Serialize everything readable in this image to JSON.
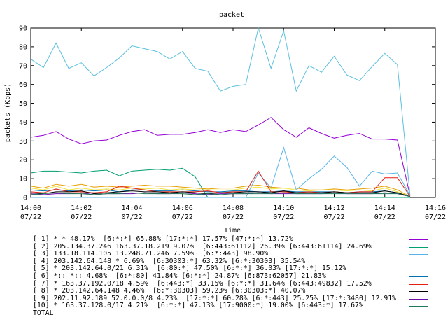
{
  "chart_data": {
    "type": "line",
    "title": "packet",
    "xlabel": "Time",
    "ylabel": "packets (Kpps)",
    "ylim": [
      0,
      90
    ],
    "yticks": [
      0,
      10,
      20,
      30,
      40,
      50,
      60,
      70,
      80,
      90
    ],
    "xlim": [
      0,
      16
    ],
    "xticks": [
      {
        "value": 0,
        "time": "14:00",
        "date": "07/22"
      },
      {
        "value": 2,
        "time": "14:02",
        "date": "07/22"
      },
      {
        "value": 4,
        "time": "14:04",
        "date": "07/22"
      },
      {
        "value": 6,
        "time": "14:06",
        "date": "07/22"
      },
      {
        "value": 8,
        "time": "14:08",
        "date": "07/22"
      },
      {
        "value": 10,
        "time": "14:10",
        "date": "07/22"
      },
      {
        "value": 12,
        "time": "14:12",
        "date": "07/22"
      },
      {
        "value": 14,
        "time": "14:14",
        "date": "07/22"
      },
      {
        "value": 16,
        "time": "14:16",
        "date": "07/22"
      }
    ],
    "x": [
      0,
      0.5,
      1,
      1.5,
      2,
      2.5,
      3,
      3.5,
      4,
      4.5,
      5,
      5.5,
      6,
      6.5,
      7,
      7.5,
      8,
      8.5,
      9,
      9.5,
      10,
      10.5,
      11,
      11.5,
      12,
      12.5,
      13,
      13.5,
      14,
      14.5,
      15
    ],
    "series": [
      {
        "name": "[ 1] * * 48.17%  [6:*:*] 65.88% [17:*:*] 17.57% [47:*:*] 13.72%",
        "color": "#9400d3",
        "values": [
          32,
          33,
          35,
          31,
          28.5,
          30,
          30.5,
          33,
          35,
          36,
          33,
          33.5,
          33.5,
          34.5,
          36,
          34.5,
          36,
          35,
          38.5,
          42.5,
          36,
          32,
          37,
          34,
          31.5,
          33,
          34,
          31,
          31,
          30.5,
          1
        ]
      },
      {
        "name": "[ 2] 205.134.37.246 163.37.18.219 9.07%  [6:443:61112] 26.39% [6:443:61114] 24.69%",
        "color": "#009e73",
        "values": [
          13,
          14,
          14,
          13.5,
          13,
          14,
          14.5,
          11.5,
          14,
          14.5,
          15,
          14.5,
          15.5,
          11,
          0,
          0,
          0,
          0,
          0,
          0,
          0,
          0,
          0,
          0,
          0,
          0,
          0,
          0,
          0,
          0,
          0
        ]
      },
      {
        "name": "[ 3] 133.18.114.105 13.248.71.246 7.59%  [6:*:443] 98.90%",
        "color": "#56b4e9",
        "values": [
          0,
          0,
          0,
          0,
          0,
          0,
          0,
          0,
          0,
          0,
          0,
          0,
          0,
          0,
          0,
          0,
          0,
          0,
          13,
          5,
          26.5,
          4,
          10,
          15,
          22,
          16,
          6,
          14,
          12.5,
          13,
          1
        ]
      },
      {
        "name": "[ 4] 203.142.64.148 * 6.69%  [6:30303:*] 63.32% [6:*:30303] 35.54%",
        "color": "#e69f00",
        "values": [
          6,
          5,
          7,
          6,
          7,
          5.5,
          6,
          5.5,
          6,
          6.5,
          6,
          6,
          5.5,
          5,
          4.5,
          5,
          5,
          6,
          6.5,
          5.5,
          5,
          5,
          4,
          4,
          4.5,
          4,
          4.5,
          5,
          6,
          4,
          0.5
        ]
      },
      {
        "name": "[ 5] * 203.142.64.0/21 6.31%  [6:80:*] 47.50% [6:*:*] 36.03% [17:*:*] 15.12%",
        "color": "#f0e442",
        "values": [
          5,
          4,
          6,
          4,
          5,
          4,
          4.5,
          4,
          5,
          4.5,
          5,
          4,
          4.5,
          4,
          4,
          4,
          4,
          5,
          5.5,
          4.5,
          5,
          4,
          3.5,
          4,
          4,
          3.5,
          4,
          3.5,
          5,
          3,
          0.5
        ]
      },
      {
        "name": "[ 6] *:: *:: 4.68%  [6:*:80] 41.84% [6:*:*] 24.87% [6:873:62057] 21.83%",
        "color": "#0072b2",
        "values": [
          4,
          3.5,
          4,
          3.5,
          4,
          3.5,
          4,
          3,
          4,
          4,
          3.5,
          3.5,
          4,
          3.5,
          3,
          3,
          3.5,
          3.5,
          3,
          3,
          3.5,
          3,
          3,
          3,
          3,
          2.5,
          3,
          3,
          3.5,
          2.5,
          0.5
        ]
      },
      {
        "name": "[ 7] * 163.37.192.0/18 4.59%  [6:443:*] 33.15% [6:*:*] 31.64% [6:443:49832] 17.52%",
        "color": "#e51e10",
        "values": [
          3,
          2.5,
          4.5,
          3,
          3,
          2.5,
          3,
          6,
          5,
          4,
          3,
          3,
          3,
          3,
          3.5,
          2.5,
          3,
          3,
          14,
          3,
          3,
          2.5,
          3,
          2.5,
          3,
          2.5,
          3,
          3,
          10.5,
          10.5,
          0.5
        ]
      },
      {
        "name": "[ 8] * 203.142.64.148 4.46%  [6:*:30303] 59.23% [6:30303:*] 40.07%",
        "color": "#000000",
        "values": [
          2.5,
          2,
          3,
          3,
          3.5,
          2,
          2.5,
          3,
          3.5,
          3,
          3,
          2.5,
          3,
          2.5,
          2,
          2.5,
          2.5,
          3,
          3,
          2.5,
          3.5,
          2.5,
          2.5,
          2.5,
          3,
          2.5,
          2.5,
          2.5,
          3.5,
          2.5,
          0.5
        ]
      },
      {
        "name": "[ 9] 202.11.92.189 52.0.0.0/8 4.23%  [17:*:*] 60.28% [6:*:443] 25.25% [17:*:3480] 12.91%",
        "color": "#6a0dad",
        "values": [
          2,
          1.5,
          2,
          2,
          2.5,
          1.5,
          2,
          2,
          2,
          2.5,
          2,
          2,
          2.5,
          2,
          1.5,
          2,
          2,
          2,
          2.5,
          2,
          2,
          2,
          2,
          2,
          2.5,
          2,
          2,
          2,
          2.5,
          2,
          0.5
        ]
      },
      {
        "name": "[10] * 163.37.128.0/17 4.21%  [6:*:*] 47.13% [17:9000:*] 19.00% [6:443:*] 17.67%",
        "color": "#1f7a5a",
        "values": [
          1.5,
          2,
          2.5,
          2,
          2,
          1.5,
          2,
          2,
          2.5,
          2,
          2,
          2,
          2,
          1.5,
          2,
          1.5,
          2,
          2,
          2,
          2,
          2.5,
          2,
          2,
          2,
          2,
          2,
          2,
          2,
          2,
          2,
          0.5
        ]
      },
      {
        "name": "TOTAL",
        "color": "#5bc0de",
        "values": [
          73.5,
          69,
          82,
          68.5,
          71.5,
          64.5,
          69,
          74,
          80.5,
          79,
          77.5,
          73.5,
          77.5,
          68.5,
          67,
          56.5,
          59,
          60,
          90,
          68.5,
          88.5,
          56.5,
          70,
          66.5,
          75,
          65,
          62,
          69.5,
          76.5,
          70.5,
          1
        ]
      }
    ]
  }
}
